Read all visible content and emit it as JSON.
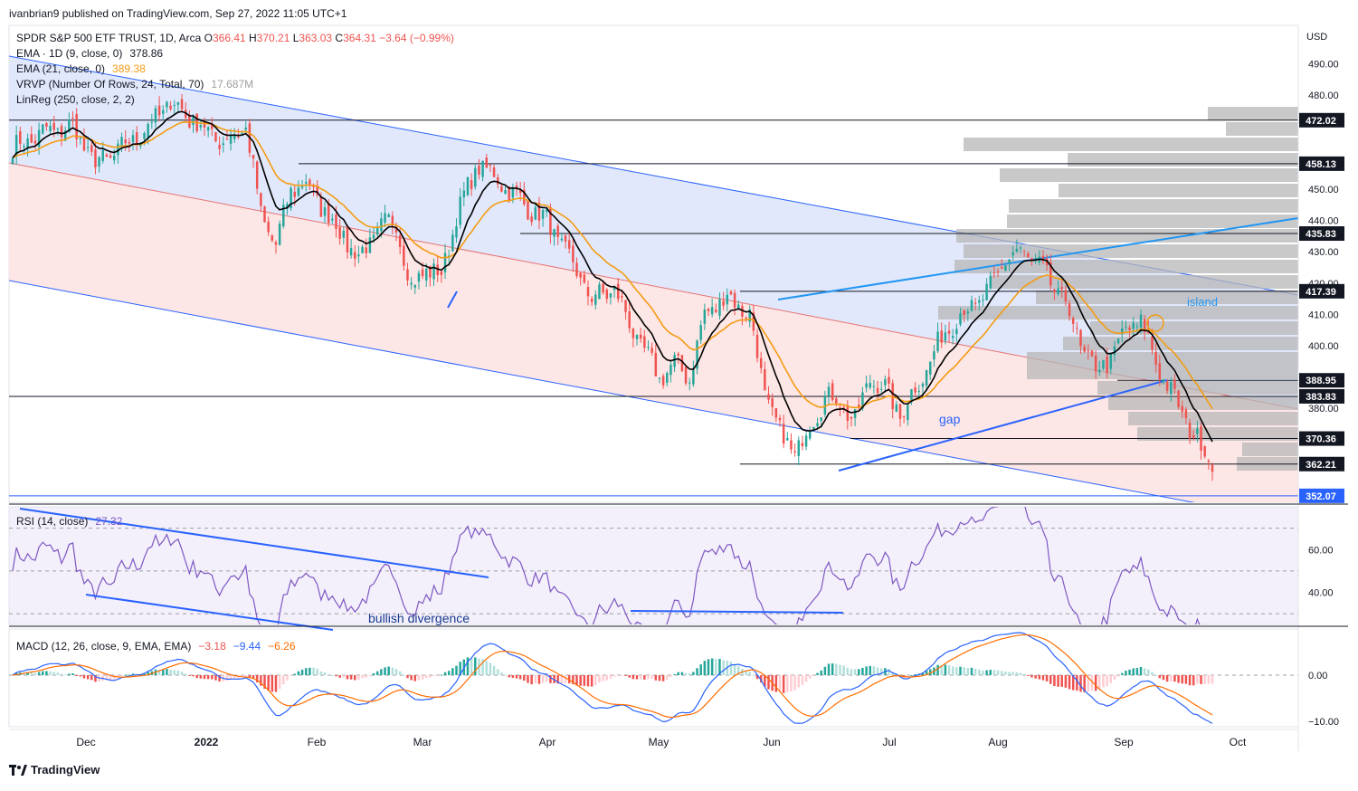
{
  "header": {
    "published": "ivanbrian9 published on TradingView.com, Sep 27, 2022 11:05 UTC+1"
  },
  "footer": {
    "brand": "TradingView",
    "logo": "tradingview-logo"
  },
  "colors": {
    "up": "#26a69a",
    "down": "#ef5350",
    "ema9": "#000000",
    "ema21": "#f39c12",
    "channel_line": "#2962ff",
    "upper_fill": "#dfe6fb",
    "lower_fill": "#fde3e3",
    "rsi_line": "#7e57c2",
    "macd_line": "#2962ff",
    "signal_line": "#ff6d00",
    "vrvp": "#b7b7b7",
    "price_label": "#131722"
  },
  "legend": {
    "symbol": "SPDR S&P 500 ETF TRUST, 1D, Arca",
    "o_label": "O",
    "o": "366.41",
    "h_label": "H",
    "h": "370.21",
    "l_label": "L",
    "l": "363.03",
    "c_label": "C",
    "c": "364.31",
    "change": "−3.64 (−0.99%)",
    "ema9_label": "EMA · 1D (9, close, 0)",
    "ema9_value": "378.86",
    "ema21_label": "EMA (21, close, 0)",
    "ema21_value": "389.38",
    "vrvp_label": "VRVP (Number Of Rows, 24, Total, 70)",
    "vrvp_value": "17.687M",
    "linreg_label": "LinReg (250, close, 2, 2)"
  },
  "currency": "USD",
  "annotations": {
    "island": "island",
    "gap": "gap",
    "bullish_divergence": "bullish divergence"
  },
  "rsi_legend": {
    "label": "RSI (14, close)",
    "value": "27.32"
  },
  "macd_legend": {
    "label": "MACD (12, 26, close, 9, EMA, EMA)",
    "v1": "−3.18",
    "v2": "−9.44",
    "v3": "−6.26"
  },
  "chart_data": {
    "type": "candlestick",
    "x_ticks": [
      "Dec",
      "2022",
      "Feb",
      "Mar",
      "Apr",
      "May",
      "Jun",
      "Jul",
      "Aug",
      "Sep",
      "Oct"
    ],
    "price_axis": {
      "ticks": [
        "490.00",
        "480.00",
        "450.00",
        "440.00",
        "430.00",
        "420.00",
        "410.00",
        "400.00",
        "380.00"
      ],
      "ylim": [
        350,
        500
      ]
    },
    "horizontal_levels": [
      "472.02",
      "458.13",
      "435.83",
      "417.39",
      "388.95",
      "383.83",
      "370.36",
      "362.21",
      "352.07"
    ],
    "rsi_axis": {
      "ticks": [
        "60.00",
        "40.00"
      ]
    },
    "macd_axis": {
      "ticks": [
        "0.00",
        "−10.00"
      ]
    },
    "price_anchors": [
      [
        0,
        463
      ],
      [
        8,
        468
      ],
      [
        16,
        470
      ],
      [
        22,
        458
      ],
      [
        28,
        462
      ],
      [
        36,
        470
      ],
      [
        42,
        478
      ],
      [
        50,
        470
      ],
      [
        56,
        465
      ],
      [
        62,
        470
      ],
      [
        66,
        442
      ],
      [
        70,
        432
      ],
      [
        74,
        450
      ],
      [
        78,
        452
      ],
      [
        86,
        438
      ],
      [
        92,
        428
      ],
      [
        98,
        438
      ],
      [
        102,
        440
      ],
      [
        106,
        418
      ],
      [
        110,
        425
      ],
      [
        114,
        422
      ],
      [
        118,
        442
      ],
      [
        124,
        458
      ],
      [
        130,
        452
      ],
      [
        136,
        445
      ],
      [
        142,
        440
      ],
      [
        148,
        428
      ],
      [
        154,
        415
      ],
      [
        160,
        418
      ],
      [
        166,
        402
      ],
      [
        172,
        390
      ],
      [
        176,
        394
      ],
      [
        180,
        390
      ],
      [
        184,
        410
      ],
      [
        190,
        416
      ],
      [
        196,
        410
      ],
      [
        200,
        385
      ],
      [
        204,
        372
      ],
      [
        208,
        366
      ],
      [
        212,
        374
      ],
      [
        216,
        384
      ],
      [
        220,
        382
      ],
      [
        224,
        376
      ],
      [
        228,
        390
      ],
      [
        232,
        386
      ],
      [
        236,
        378
      ],
      [
        240,
        386
      ],
      [
        244,
        395
      ],
      [
        248,
        405
      ],
      [
        252,
        410
      ],
      [
        256,
        413
      ],
      [
        260,
        418
      ],
      [
        264,
        428
      ],
      [
        268,
        430
      ],
      [
        272,
        427
      ],
      [
        276,
        420
      ],
      [
        280,
        414
      ],
      [
        284,
        400
      ],
      [
        288,
        392
      ],
      [
        292,
        396
      ],
      [
        296,
        405
      ],
      [
        300,
        408
      ],
      [
        304,
        395
      ],
      [
        308,
        385
      ],
      [
        312,
        376
      ],
      [
        316,
        368
      ],
      [
        318,
        364
      ]
    ]
  }
}
